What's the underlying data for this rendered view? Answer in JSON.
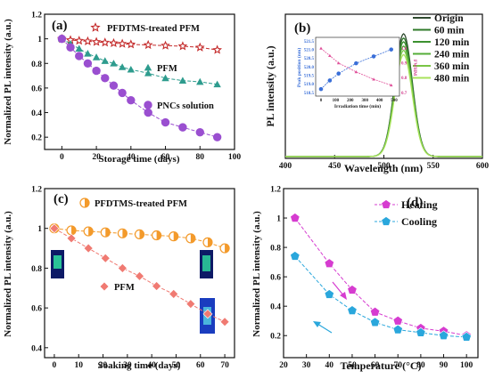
{
  "chart_data": [
    {
      "panel": "(a)",
      "type": "line",
      "xlabel": "Storage time (days)",
      "ylabel": "Normalized PL intensity (a.u.)",
      "xlim": [
        -10,
        100
      ],
      "ylim": [
        0.1,
        1.2
      ],
      "xticks": [
        0,
        20,
        40,
        60,
        80,
        100
      ],
      "yticks": [
        0.2,
        0.4,
        0.6,
        0.8,
        1.0,
        1.2
      ],
      "grid": false,
      "series": [
        {
          "name": "PFDTMS-treated PFM",
          "color": "#c42b2b",
          "marker": "star",
          "x": [
            0,
            5,
            10,
            15,
            20,
            25,
            30,
            35,
            40,
            50,
            60,
            70,
            80,
            90
          ],
          "y": [
            1.0,
            0.99,
            0.985,
            0.98,
            0.975,
            0.97,
            0.965,
            0.96,
            0.955,
            0.95,
            0.945,
            0.94,
            0.93,
            0.91
          ]
        },
        {
          "name": "PFM",
          "color": "#2e9c8e",
          "marker": "triangle",
          "x": [
            0,
            5,
            10,
            15,
            20,
            25,
            30,
            35,
            40,
            50,
            60,
            70,
            80,
            90
          ],
          "y": [
            1.0,
            0.96,
            0.92,
            0.88,
            0.85,
            0.82,
            0.8,
            0.77,
            0.75,
            0.72,
            0.68,
            0.66,
            0.65,
            0.63
          ]
        },
        {
          "name": "PNCs solution",
          "color": "#9a4fd0",
          "marker": "circle",
          "x": [
            0,
            5,
            10,
            15,
            20,
            25,
            30,
            35,
            40,
            50,
            60,
            70,
            80,
            90
          ],
          "y": [
            1.0,
            0.93,
            0.86,
            0.8,
            0.74,
            0.68,
            0.62,
            0.56,
            0.5,
            0.4,
            0.32,
            0.28,
            0.24,
            0.2
          ]
        }
      ]
    },
    {
      "panel": "(b)",
      "type": "line",
      "xlabel": "Wavelength (nm)",
      "ylabel": "PL intensity (a.u.)",
      "xlim": [
        400,
        600
      ],
      "xticks": [
        400,
        450,
        500,
        550,
        600
      ],
      "grid": false,
      "peak_center": 520,
      "peak_fwhm": 21,
      "series": [
        {
          "name": "Origin",
          "color": "#2f4a2f",
          "amplitude": 1.0
        },
        {
          "name": "60 min",
          "color": "#2f7a2a",
          "amplitude": 0.965
        },
        {
          "name": "120 min",
          "color": "#3c9130",
          "amplitude": 0.935
        },
        {
          "name": "240 min",
          "color": "#55ad38",
          "amplitude": 0.9
        },
        {
          "name": "360 min",
          "color": "#7ac545",
          "amplitude": 0.865
        },
        {
          "name": "480 min",
          "color": "#a8e25c",
          "amplitude": 0.83
        }
      ],
      "inset": {
        "xlabel": "Irradiation time (min)",
        "ylabel_left": "Peak position (nm)",
        "ylabel_right": "FWHM",
        "xlim": [
          0,
          500
        ],
        "xticks": [
          0,
          100,
          200,
          300,
          400,
          500
        ],
        "ylim_left": [
          518.5,
          521.5
        ],
        "yticks_left": [
          "518.5",
          "519.0",
          "519.5",
          "520.0",
          "520.5",
          "521.0",
          "521.5"
        ],
        "ylim_right": [
          0.7,
          1.05
        ],
        "yticks_right": [
          "0.7",
          "0.8",
          "0.9",
          "1.0"
        ],
        "series": [
          {
            "name": "Peak position",
            "color": "#3a6fd8",
            "marker": "circle",
            "x": [
              0,
              60,
              120,
              240,
              360,
              480
            ],
            "y": [
              518.7,
              519.2,
              519.6,
              520.2,
              520.6,
              521.0
            ]
          },
          {
            "name": "FWHM",
            "color": "#e0509a",
            "marker": "triangle",
            "x": [
              0,
              60,
              120,
              240,
              360,
              480
            ],
            "y": [
              1.0,
              0.95,
              0.9,
              0.84,
              0.79,
              0.75
            ]
          }
        ]
      }
    },
    {
      "panel": "(c)",
      "type": "line",
      "xlabel": "Soaking time (days)",
      "ylabel": "Normalized PL intensity (a.u.)",
      "xlim": [
        -4,
        74
      ],
      "ylim": [
        0.35,
        1.2
      ],
      "xticks": [
        0,
        10,
        20,
        30,
        40,
        50,
        60,
        70
      ],
      "yticks": [
        0.4,
        0.6,
        0.8,
        1.0,
        1.2
      ],
      "grid": false,
      "series": [
        {
          "name": "PFDTMS-treated PFM",
          "color": "#f39a2b",
          "marker": "half-circle",
          "x": [
            0,
            7,
            14,
            21,
            28,
            35,
            42,
            49,
            56,
            63,
            70
          ],
          "y": [
            1.0,
            0.99,
            0.985,
            0.98,
            0.975,
            0.97,
            0.965,
            0.96,
            0.95,
            0.93,
            0.9
          ]
        },
        {
          "name": "PFM",
          "color": "#f07a72",
          "marker": "diamond",
          "x": [
            0,
            7,
            14,
            21,
            28,
            35,
            42,
            49,
            56,
            63,
            70
          ],
          "y": [
            1.0,
            0.95,
            0.9,
            0.85,
            0.8,
            0.76,
            0.71,
            0.67,
            0.62,
            0.57,
            0.53
          ]
        }
      ]
    },
    {
      "panel": "(d)",
      "type": "line",
      "xlabel": "Temperature (°C)",
      "ylabel": "Normalized PL intensity (a.u.)",
      "xlim": [
        20,
        105
      ],
      "ylim": [
        0.05,
        1.2
      ],
      "xticks": [
        20,
        30,
        40,
        50,
        60,
        70,
        80,
        90,
        100
      ],
      "yticks": [
        0.2,
        0.4,
        0.6,
        0.8,
        1.0,
        1.2
      ],
      "grid": false,
      "series": [
        {
          "name": "Heating",
          "color": "#d63cd0",
          "marker": "pentagon",
          "x": [
            25,
            40,
            50,
            60,
            70,
            80,
            90,
            100
          ],
          "y": [
            1.0,
            0.69,
            0.51,
            0.36,
            0.3,
            0.25,
            0.23,
            0.2
          ]
        },
        {
          "name": "Cooling",
          "color": "#2aa7dc",
          "marker": "pentagon",
          "x": [
            25,
            40,
            50,
            60,
            70,
            80,
            90,
            100
          ],
          "y": [
            0.74,
            0.48,
            0.37,
            0.29,
            0.24,
            0.22,
            0.2,
            0.19
          ]
        }
      ]
    }
  ]
}
